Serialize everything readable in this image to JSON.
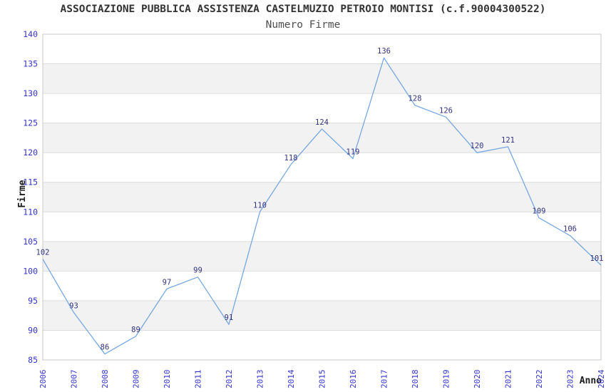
{
  "chart_data": {
    "type": "line",
    "title": "ASSOCIAZIONE PUBBLICA ASSISTENZA CASTELMUZIO PETROIO MONTISI (c.f.90004300522)",
    "subtitle": "Numero Firme",
    "xlabel": "Anno",
    "ylabel": "Firme",
    "categories": [
      "2006",
      "2007",
      "2008",
      "2009",
      "2010",
      "2011",
      "2012",
      "2013",
      "2014",
      "2015",
      "2016",
      "2017",
      "2018",
      "2019",
      "2020",
      "2021",
      "2022",
      "2023",
      "2024"
    ],
    "values": [
      102,
      93,
      86,
      89,
      97,
      99,
      91,
      110,
      118,
      124,
      119,
      136,
      128,
      126,
      120,
      121,
      109,
      106,
      101
    ],
    "ylim": [
      85,
      140
    ],
    "ytick_step": 5,
    "yticks": [
      85,
      90,
      95,
      100,
      105,
      110,
      115,
      120,
      125,
      130,
      135,
      140
    ],
    "grid": "horizontal-bands-alternating",
    "legend": "none",
    "point_labels_shown": true
  },
  "colors": {
    "background": "#ffffff",
    "title": "#333333",
    "subtitle": "#4d4d4d",
    "axis_title": "#1a1a1a",
    "tick_label": "#3333cc",
    "data_label": "#333380",
    "line": "#76a7e0",
    "band": "#f2f2f2",
    "gridline": "#dcdcdc",
    "plot_border": "#c9c9c9"
  }
}
